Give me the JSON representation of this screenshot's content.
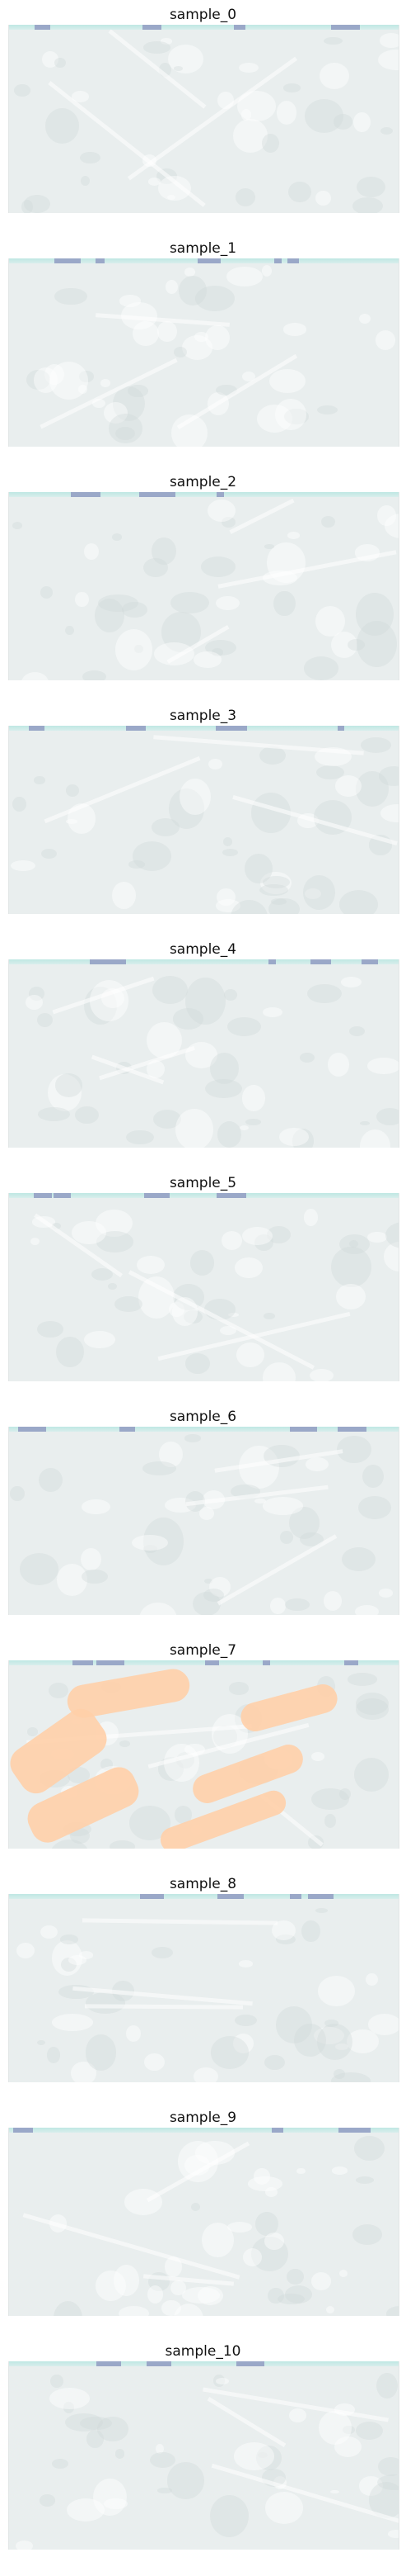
{
  "panels": [
    {
      "title": "sample_0"
    },
    {
      "title": "sample_1"
    },
    {
      "title": "sample_2"
    },
    {
      "title": "sample_3"
    },
    {
      "title": "sample_4"
    },
    {
      "title": "sample_5"
    },
    {
      "title": "sample_6"
    },
    {
      "title": "sample_7"
    },
    {
      "title": "sample_8"
    },
    {
      "title": "sample_9"
    },
    {
      "title": "sample_10"
    }
  ],
  "colors": {
    "panel_background": "#e9eeee",
    "top_strip": "#bfe7e3",
    "highlight_overlay": "#ffcfa8"
  }
}
